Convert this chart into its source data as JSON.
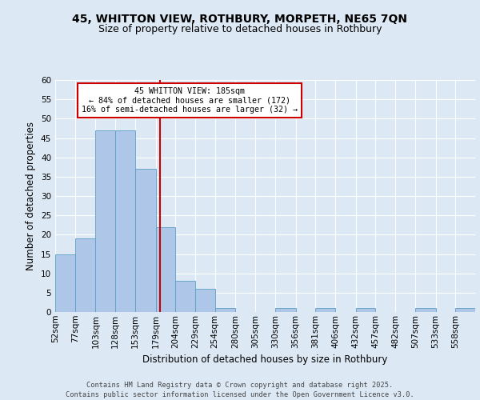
{
  "title_line1": "45, WHITTON VIEW, ROTHBURY, MORPETH, NE65 7QN",
  "title_line2": "Size of property relative to detached houses in Rothbury",
  "xlabel": "Distribution of detached houses by size in Rothbury",
  "ylabel": "Number of detached properties",
  "footer": "Contains HM Land Registry data © Crown copyright and database right 2025.\nContains public sector information licensed under the Open Government Licence v3.0.",
  "bin_labels": [
    "52sqm",
    "77sqm",
    "103sqm",
    "128sqm",
    "153sqm",
    "179sqm",
    "204sqm",
    "229sqm",
    "254sqm",
    "280sqm",
    "305sqm",
    "330sqm",
    "356sqm",
    "381sqm",
    "406sqm",
    "432sqm",
    "457sqm",
    "482sqm",
    "507sqm",
    "533sqm",
    "558sqm"
  ],
  "bin_edges": [
    52,
    77,
    103,
    128,
    153,
    179,
    204,
    229,
    254,
    280,
    305,
    330,
    356,
    381,
    406,
    432,
    457,
    482,
    507,
    533,
    558,
    583
  ],
  "values": [
    15,
    19,
    47,
    47,
    37,
    22,
    8,
    6,
    1,
    0,
    0,
    1,
    0,
    1,
    0,
    1,
    0,
    0,
    1,
    0,
    1
  ],
  "bar_color": "#aec6e8",
  "bar_edge_color": "#5a9fc5",
  "property_size": 185,
  "vline_color": "#cc0000",
  "annotation_text": "45 WHITTON VIEW: 185sqm\n← 84% of detached houses are smaller (172)\n16% of semi-detached houses are larger (32) →",
  "annotation_box_color": "#cc0000",
  "ylim": [
    0,
    60
  ],
  "yticks": [
    0,
    5,
    10,
    15,
    20,
    25,
    30,
    35,
    40,
    45,
    50,
    55,
    60
  ],
  "bg_color": "#dce8f4",
  "plot_bg_color": "#dce8f4",
  "grid_color": "#ffffff",
  "title_fontsize": 10,
  "subtitle_fontsize": 9,
  "axis_label_fontsize": 8.5,
  "tick_fontsize": 7.5,
  "footer_fontsize": 6.2
}
